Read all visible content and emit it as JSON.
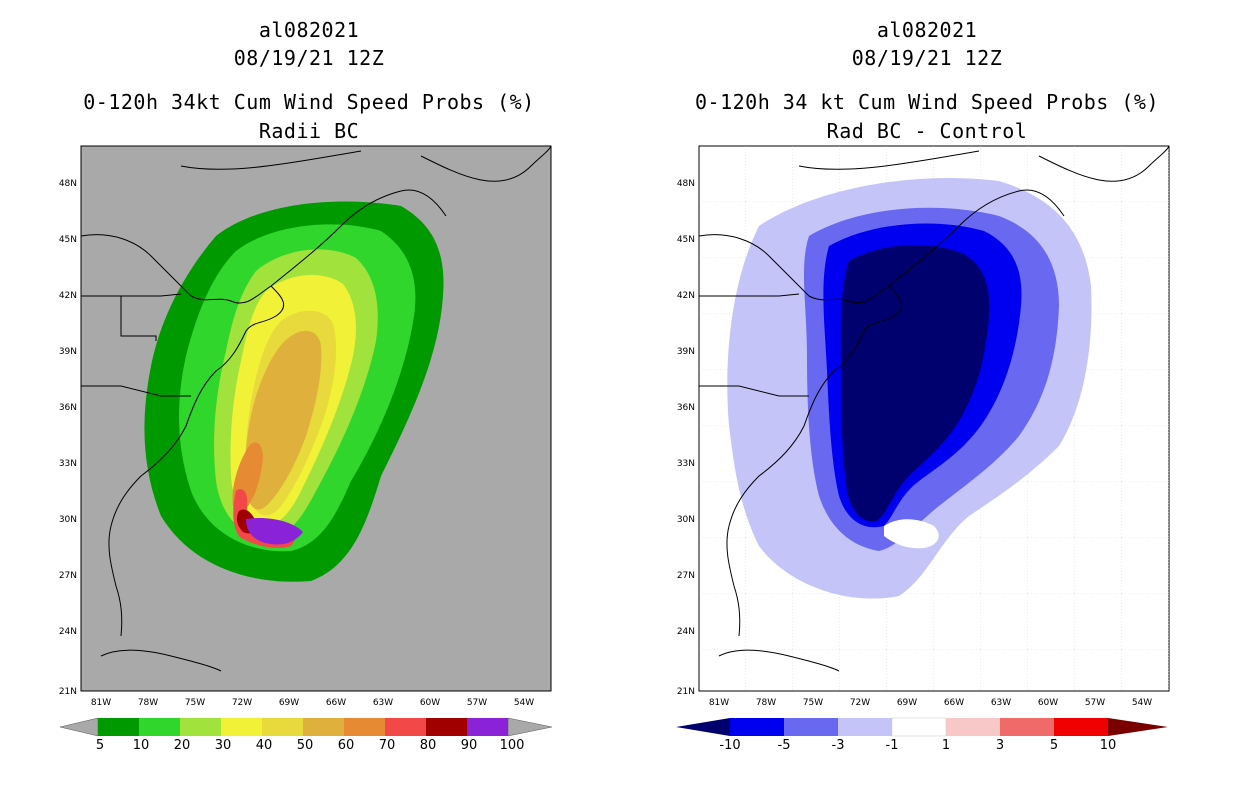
{
  "left_panel": {
    "title_line1": "al082021",
    "title_line2": "08/19/21 12Z",
    "title_line3": "0-120h 34kt Cum Wind Speed Probs (%)",
    "title_line4": "Radii BC",
    "background_color": "#a9a9a9",
    "colorbar": {
      "labels": [
        "5",
        "10",
        "20",
        "30",
        "40",
        "50",
        "60",
        "70",
        "80",
        "90",
        "100"
      ],
      "colors": [
        "#009a00",
        "#31d62c",
        "#a2e23c",
        "#f1f138",
        "#e8d93c",
        "#e0b03c",
        "#e68a34",
        "#f24848",
        "#a00000",
        "#8a22d8"
      ]
    }
  },
  "right_panel": {
    "title_line1": "al082021",
    "title_line2": "08/19/21 12Z",
    "title_line3": "0-120h 34 kt Cum Wind Speed Probs (%)",
    "title_line4": "Rad BC - Control",
    "background_color": "#ffffff",
    "colorbar": {
      "labels": [
        "-10",
        "-5",
        "-3",
        "-1",
        "1",
        "3",
        "5",
        "10"
      ],
      "colors": [
        "#00006e",
        "#0000f0",
        "#6868f0",
        "#c4c4f8",
        "#ffffff",
        "#f8c8c8",
        "#f06a6a",
        "#f00000",
        "#7a0000"
      ]
    }
  },
  "axes": {
    "lat_labels": [
      "48N",
      "45N",
      "42N",
      "39N",
      "36N",
      "33N",
      "30N",
      "27N",
      "24N",
      "21N"
    ],
    "lon_labels": [
      "81W",
      "78W",
      "75W",
      "72W",
      "69W",
      "66W",
      "63W",
      "60W",
      "57W",
      "54W"
    ]
  }
}
